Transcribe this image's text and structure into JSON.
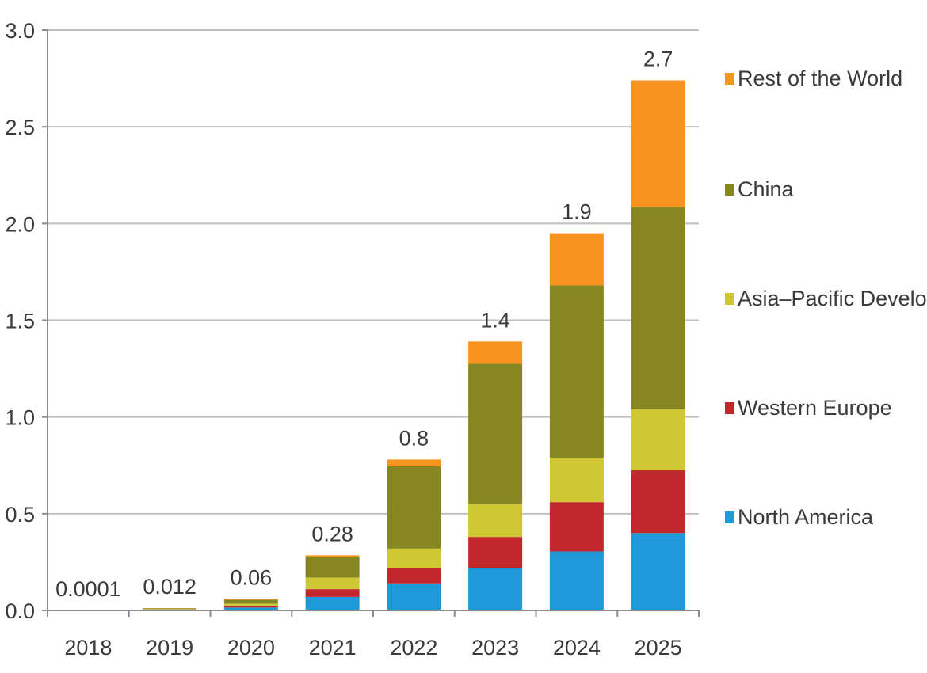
{
  "chart_data": {
    "type": "bar",
    "stacked": true,
    "title": "",
    "xlabel": "",
    "ylabel": "",
    "ylim": [
      0,
      3.0
    ],
    "yticks": [
      "0.0",
      "0.5",
      "1.0",
      "1.5",
      "2.0",
      "2.5",
      "3.0"
    ],
    "grid": "horizontal",
    "legend_position": "right",
    "categories": [
      "2018",
      "2019",
      "2020",
      "2021",
      "2022",
      "2023",
      "2024",
      "2025"
    ],
    "totals_labels": [
      "0.0001",
      "0.012",
      "0.06",
      "0.28",
      "0.8",
      "1.4",
      "1.9",
      "2.7"
    ],
    "series": [
      {
        "name": "North America",
        "color": "#1f9ad9",
        "values": [
          0.0,
          0.003,
          0.015,
          0.07,
          0.14,
          0.22,
          0.305,
          0.4
        ]
      },
      {
        "name": "Western Europe",
        "color": "#c1272d",
        "values": [
          0.0,
          0.002,
          0.01,
          0.04,
          0.08,
          0.16,
          0.255,
          0.325
        ]
      },
      {
        "name": "Asia–Pacific Developed",
        "color": "#cfc834",
        "values": [
          0.0,
          0.002,
          0.01,
          0.06,
          0.1,
          0.17,
          0.23,
          0.315
        ]
      },
      {
        "name": "China",
        "color": "#868722",
        "values": [
          0.0001,
          0.004,
          0.02,
          0.105,
          0.425,
          0.725,
          0.89,
          1.045
        ]
      },
      {
        "name": "Rest of the World",
        "color": "#f7931e",
        "values": [
          0.0,
          0.001,
          0.005,
          0.01,
          0.035,
          0.115,
          0.27,
          0.655
        ]
      }
    ]
  }
}
